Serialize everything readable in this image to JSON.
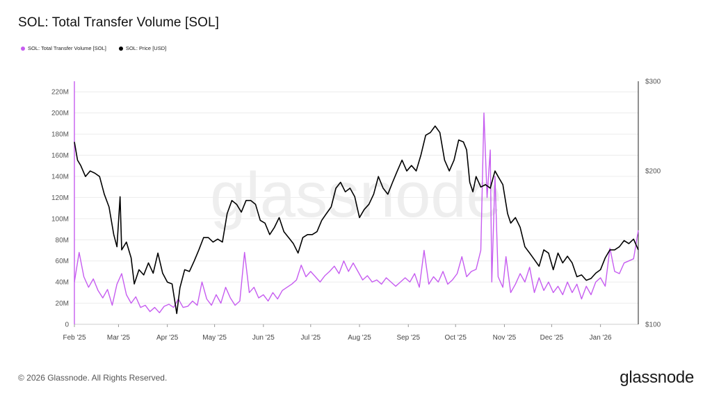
{
  "header": {
    "title": "SOL: Total Transfer Volume [SOL]"
  },
  "legend": [
    {
      "label": "SOL: Total Transfer Volume [SOL]",
      "color": "#c65cf0"
    },
    {
      "label": "SOL: Price [USD]",
      "color": "#000000"
    }
  ],
  "watermark": "glassnode",
  "footer": {
    "copyright": "© 2026 Glassnode. All Rights Reserved.",
    "brand": "glassnode"
  },
  "chart_data": {
    "type": "line",
    "title": "SOL: Total Transfer Volume [SOL]",
    "x_start": "2025-02-01",
    "x_end": "2026-01-25",
    "x_ticks": [
      {
        "label": "Feb '25",
        "date": "2025-02-01"
      },
      {
        "label": "Mar '25",
        "date": "2025-03-01"
      },
      {
        "label": "Apr '25",
        "date": "2025-04-01"
      },
      {
        "label": "May '25",
        "date": "2025-05-01"
      },
      {
        "label": "Jun '25",
        "date": "2025-06-01"
      },
      {
        "label": "Jul '25",
        "date": "2025-07-01"
      },
      {
        "label": "Aug '25",
        "date": "2025-08-01"
      },
      {
        "label": "Sep '25",
        "date": "2025-09-01"
      },
      {
        "label": "Oct '25",
        "date": "2025-10-01"
      },
      {
        "label": "Nov '25",
        "date": "2025-11-01"
      },
      {
        "label": "Dec '25",
        "date": "2025-12-01"
      },
      {
        "label": "Jan '26",
        "date": "2026-01-01"
      }
    ],
    "y_left": {
      "label": "",
      "min": 0,
      "max": 230000000,
      "ticks": [
        0,
        20000000,
        40000000,
        60000000,
        80000000,
        100000000,
        120000000,
        140000000,
        160000000,
        180000000,
        200000000,
        220000000
      ],
      "tick_labels": [
        "0",
        "20M",
        "40M",
        "60M",
        "80M",
        "100M",
        "120M",
        "140M",
        "160M",
        "180M",
        "200M",
        "220M"
      ]
    },
    "y_right": {
      "label": "",
      "scale": "log",
      "min": 100,
      "max": 300,
      "ticks": [
        100,
        200,
        300
      ],
      "tick_labels": [
        "$100",
        "$200",
        "$300"
      ]
    },
    "grid": true,
    "series": [
      {
        "name": "SOL: Total Transfer Volume [SOL]",
        "axis": "left",
        "color": "#c65cf0",
        "points": [
          [
            "2025-02-01",
            40000000
          ],
          [
            "2025-02-04",
            68000000
          ],
          [
            "2025-02-07",
            45000000
          ],
          [
            "2025-02-10",
            35000000
          ],
          [
            "2025-02-13",
            43000000
          ],
          [
            "2025-02-16",
            32000000
          ],
          [
            "2025-02-19",
            25000000
          ],
          [
            "2025-02-22",
            33000000
          ],
          [
            "2025-02-25",
            18000000
          ],
          [
            "2025-02-28",
            38000000
          ],
          [
            "2025-03-03",
            48000000
          ],
          [
            "2025-03-06",
            28000000
          ],
          [
            "2025-03-09",
            20000000
          ],
          [
            "2025-03-12",
            26000000
          ],
          [
            "2025-03-15",
            16000000
          ],
          [
            "2025-03-18",
            18000000
          ],
          [
            "2025-03-21",
            12000000
          ],
          [
            "2025-03-24",
            16000000
          ],
          [
            "2025-03-27",
            11000000
          ],
          [
            "2025-03-30",
            17000000
          ],
          [
            "2025-04-02",
            19000000
          ],
          [
            "2025-04-05",
            16000000
          ],
          [
            "2025-04-08",
            24000000
          ],
          [
            "2025-04-11",
            16000000
          ],
          [
            "2025-04-14",
            17000000
          ],
          [
            "2025-04-17",
            22000000
          ],
          [
            "2025-04-20",
            18000000
          ],
          [
            "2025-04-23",
            40000000
          ],
          [
            "2025-04-26",
            24000000
          ],
          [
            "2025-04-29",
            18000000
          ],
          [
            "2025-05-02",
            28000000
          ],
          [
            "2025-05-05",
            20000000
          ],
          [
            "2025-05-08",
            35000000
          ],
          [
            "2025-05-11",
            25000000
          ],
          [
            "2025-05-14",
            18000000
          ],
          [
            "2025-05-17",
            22000000
          ],
          [
            "2025-05-20",
            68000000
          ],
          [
            "2025-05-23",
            30000000
          ],
          [
            "2025-05-26",
            35000000
          ],
          [
            "2025-05-29",
            25000000
          ],
          [
            "2025-06-01",
            28000000
          ],
          [
            "2025-06-04",
            22000000
          ],
          [
            "2025-06-07",
            30000000
          ],
          [
            "2025-06-10",
            24000000
          ],
          [
            "2025-06-13",
            32000000
          ],
          [
            "2025-06-16",
            35000000
          ],
          [
            "2025-06-19",
            38000000
          ],
          [
            "2025-06-22",
            42000000
          ],
          [
            "2025-06-25",
            56000000
          ],
          [
            "2025-06-28",
            45000000
          ],
          [
            "2025-07-01",
            50000000
          ],
          [
            "2025-07-04",
            45000000
          ],
          [
            "2025-07-07",
            40000000
          ],
          [
            "2025-07-10",
            46000000
          ],
          [
            "2025-07-13",
            50000000
          ],
          [
            "2025-07-16",
            55000000
          ],
          [
            "2025-07-19",
            48000000
          ],
          [
            "2025-07-22",
            60000000
          ],
          [
            "2025-07-25",
            50000000
          ],
          [
            "2025-07-28",
            58000000
          ],
          [
            "2025-07-31",
            50000000
          ],
          [
            "2025-08-03",
            42000000
          ],
          [
            "2025-08-06",
            46000000
          ],
          [
            "2025-08-09",
            40000000
          ],
          [
            "2025-08-12",
            42000000
          ],
          [
            "2025-08-15",
            38000000
          ],
          [
            "2025-08-18",
            44000000
          ],
          [
            "2025-08-21",
            40000000
          ],
          [
            "2025-08-24",
            36000000
          ],
          [
            "2025-08-27",
            40000000
          ],
          [
            "2025-08-30",
            44000000
          ],
          [
            "2025-09-02",
            40000000
          ],
          [
            "2025-09-05",
            48000000
          ],
          [
            "2025-09-08",
            35000000
          ],
          [
            "2025-09-11",
            70000000
          ],
          [
            "2025-09-14",
            38000000
          ],
          [
            "2025-09-17",
            45000000
          ],
          [
            "2025-09-20",
            40000000
          ],
          [
            "2025-09-23",
            50000000
          ],
          [
            "2025-09-26",
            38000000
          ],
          [
            "2025-09-29",
            42000000
          ],
          [
            "2025-10-02",
            48000000
          ],
          [
            "2025-10-05",
            64000000
          ],
          [
            "2025-10-08",
            45000000
          ],
          [
            "2025-10-11",
            50000000
          ],
          [
            "2025-10-14",
            52000000
          ],
          [
            "2025-10-17",
            70000000
          ],
          [
            "2025-10-19",
            200000000
          ],
          [
            "2025-10-21",
            120000000
          ],
          [
            "2025-10-23",
            165000000
          ],
          [
            "2025-10-24",
            40000000
          ],
          [
            "2025-10-26",
            140000000
          ],
          [
            "2025-10-28",
            45000000
          ],
          [
            "2025-10-31",
            35000000
          ],
          [
            "2025-11-02",
            64000000
          ],
          [
            "2025-11-05",
            30000000
          ],
          [
            "2025-11-08",
            38000000
          ],
          [
            "2025-11-11",
            48000000
          ],
          [
            "2025-11-14",
            40000000
          ],
          [
            "2025-11-17",
            54000000
          ],
          [
            "2025-11-20",
            30000000
          ],
          [
            "2025-11-23",
            44000000
          ],
          [
            "2025-11-26",
            32000000
          ],
          [
            "2025-11-29",
            40000000
          ],
          [
            "2025-12-02",
            30000000
          ],
          [
            "2025-12-05",
            36000000
          ],
          [
            "2025-12-08",
            28000000
          ],
          [
            "2025-12-11",
            40000000
          ],
          [
            "2025-12-14",
            30000000
          ],
          [
            "2025-12-17",
            38000000
          ],
          [
            "2025-12-20",
            24000000
          ],
          [
            "2025-12-23",
            36000000
          ],
          [
            "2025-12-26",
            28000000
          ],
          [
            "2025-12-29",
            40000000
          ],
          [
            "2026-01-01",
            44000000
          ],
          [
            "2026-01-04",
            36000000
          ],
          [
            "2026-01-07",
            72000000
          ],
          [
            "2026-01-10",
            50000000
          ],
          [
            "2026-01-13",
            48000000
          ],
          [
            "2026-01-16",
            58000000
          ],
          [
            "2026-01-19",
            60000000
          ],
          [
            "2026-01-22",
            62000000
          ],
          [
            "2026-01-25",
            89000000
          ]
        ]
      },
      {
        "name": "SOL: Price [USD]",
        "axis": "right",
        "color": "#000000",
        "points": [
          [
            "2025-02-01",
            228
          ],
          [
            "2025-02-03",
            210
          ],
          [
            "2025-02-05",
            205
          ],
          [
            "2025-02-08",
            195
          ],
          [
            "2025-02-11",
            200
          ],
          [
            "2025-02-14",
            198
          ],
          [
            "2025-02-17",
            195
          ],
          [
            "2025-02-20",
            180
          ],
          [
            "2025-02-23",
            170
          ],
          [
            "2025-02-26",
            150
          ],
          [
            "2025-02-28",
            142
          ],
          [
            "2025-03-02",
            178
          ],
          [
            "2025-03-03",
            140
          ],
          [
            "2025-03-06",
            145
          ],
          [
            "2025-03-09",
            135
          ],
          [
            "2025-03-11",
            120
          ],
          [
            "2025-03-14",
            128
          ],
          [
            "2025-03-17",
            125
          ],
          [
            "2025-03-20",
            132
          ],
          [
            "2025-03-23",
            126
          ],
          [
            "2025-03-26",
            138
          ],
          [
            "2025-03-29",
            126
          ],
          [
            "2025-04-01",
            121
          ],
          [
            "2025-04-04",
            120
          ],
          [
            "2025-04-07",
            105
          ],
          [
            "2025-04-09",
            118
          ],
          [
            "2025-04-12",
            128
          ],
          [
            "2025-04-15",
            127
          ],
          [
            "2025-04-18",
            133
          ],
          [
            "2025-04-21",
            140
          ],
          [
            "2025-04-24",
            148
          ],
          [
            "2025-04-27",
            148
          ],
          [
            "2025-04-30",
            145
          ],
          [
            "2025-05-03",
            147
          ],
          [
            "2025-05-06",
            145
          ],
          [
            "2025-05-09",
            165
          ],
          [
            "2025-05-12",
            175
          ],
          [
            "2025-05-15",
            172
          ],
          [
            "2025-05-18",
            166
          ],
          [
            "2025-05-21",
            175
          ],
          [
            "2025-05-24",
            175
          ],
          [
            "2025-05-27",
            172
          ],
          [
            "2025-05-30",
            160
          ],
          [
            "2025-06-02",
            158
          ],
          [
            "2025-06-05",
            150
          ],
          [
            "2025-06-08",
            155
          ],
          [
            "2025-06-11",
            162
          ],
          [
            "2025-06-14",
            152
          ],
          [
            "2025-06-17",
            148
          ],
          [
            "2025-06-20",
            144
          ],
          [
            "2025-06-23",
            138
          ],
          [
            "2025-06-26",
            148
          ],
          [
            "2025-06-29",
            150
          ],
          [
            "2025-07-02",
            150
          ],
          [
            "2025-07-05",
            152
          ],
          [
            "2025-07-08",
            160
          ],
          [
            "2025-07-11",
            165
          ],
          [
            "2025-07-14",
            170
          ],
          [
            "2025-07-17",
            185
          ],
          [
            "2025-07-20",
            190
          ],
          [
            "2025-07-23",
            182
          ],
          [
            "2025-07-26",
            185
          ],
          [
            "2025-07-29",
            178
          ],
          [
            "2025-08-01",
            162
          ],
          [
            "2025-08-04",
            168
          ],
          [
            "2025-08-07",
            172
          ],
          [
            "2025-08-10",
            180
          ],
          [
            "2025-08-13",
            195
          ],
          [
            "2025-08-16",
            185
          ],
          [
            "2025-08-19",
            180
          ],
          [
            "2025-08-22",
            190
          ],
          [
            "2025-08-25",
            200
          ],
          [
            "2025-08-28",
            210
          ],
          [
            "2025-08-31",
            200
          ],
          [
            "2025-09-03",
            205
          ],
          [
            "2025-09-06",
            200
          ],
          [
            "2025-09-09",
            215
          ],
          [
            "2025-09-12",
            235
          ],
          [
            "2025-09-15",
            238
          ],
          [
            "2025-09-18",
            245
          ],
          [
            "2025-09-21",
            238
          ],
          [
            "2025-09-24",
            210
          ],
          [
            "2025-09-27",
            200
          ],
          [
            "2025-09-30",
            210
          ],
          [
            "2025-10-03",
            230
          ],
          [
            "2025-10-06",
            228
          ],
          [
            "2025-10-08",
            220
          ],
          [
            "2025-10-10",
            190
          ],
          [
            "2025-10-12",
            182
          ],
          [
            "2025-10-14",
            195
          ],
          [
            "2025-10-17",
            186
          ],
          [
            "2025-10-20",
            188
          ],
          [
            "2025-10-23",
            185
          ],
          [
            "2025-10-26",
            200
          ],
          [
            "2025-10-28",
            195
          ],
          [
            "2025-10-31",
            188
          ],
          [
            "2025-11-03",
            165
          ],
          [
            "2025-11-05",
            158
          ],
          [
            "2025-11-08",
            162
          ],
          [
            "2025-11-11",
            155
          ],
          [
            "2025-11-14",
            142
          ],
          [
            "2025-11-17",
            138
          ],
          [
            "2025-11-20",
            134
          ],
          [
            "2025-11-23",
            130
          ],
          [
            "2025-11-26",
            140
          ],
          [
            "2025-11-29",
            138
          ],
          [
            "2025-12-02",
            128
          ],
          [
            "2025-12-05",
            138
          ],
          [
            "2025-12-08",
            132
          ],
          [
            "2025-12-11",
            136
          ],
          [
            "2025-12-14",
            132
          ],
          [
            "2025-12-17",
            124
          ],
          [
            "2025-12-20",
            125
          ],
          [
            "2025-12-23",
            122
          ],
          [
            "2025-12-26",
            123
          ],
          [
            "2025-12-29",
            126
          ],
          [
            "2026-01-01",
            128
          ],
          [
            "2026-01-04",
            135
          ],
          [
            "2026-01-07",
            140
          ],
          [
            "2026-01-10",
            140
          ],
          [
            "2026-01-13",
            142
          ],
          [
            "2026-01-16",
            146
          ],
          [
            "2026-01-19",
            144
          ],
          [
            "2026-01-22",
            147
          ],
          [
            "2026-01-25",
            140
          ]
        ]
      }
    ]
  }
}
